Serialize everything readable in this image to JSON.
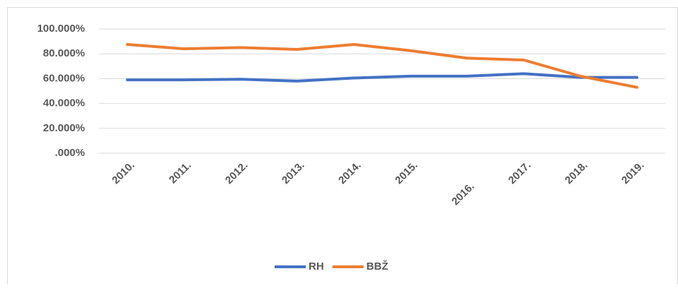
{
  "chart_data": {
    "type": "line",
    "categories": [
      "2010.",
      "2011.",
      "2012.",
      "2013.",
      "2014.",
      "2015.",
      "2016.",
      "2017.",
      "2018.",
      "2019."
    ],
    "series": [
      {
        "name": "RH",
        "color": "#4472c4",
        "values": [
          59,
          59,
          59.5,
          58,
          60.5,
          62,
          62,
          64,
          61,
          61
        ]
      },
      {
        "name": "BBŽ",
        "color": "#ed7d31",
        "values": [
          87.5,
          84,
          85,
          83.5,
          87.5,
          82.5,
          76.5,
          75,
          62,
          53
        ]
      }
    ],
    "ylim": [
      0,
      100
    ],
    "yticks": [
      {
        "value": 0,
        "label": ".000%"
      },
      {
        "value": 20,
        "label": "20.000%"
      },
      {
        "value": 40,
        "label": "40.000%"
      },
      {
        "value": 60,
        "label": "60.000%"
      },
      {
        "value": 80,
        "label": "80.000%"
      },
      {
        "value": 100,
        "label": "100.000%"
      }
    ],
    "grid": true,
    "legend": "bottom"
  }
}
